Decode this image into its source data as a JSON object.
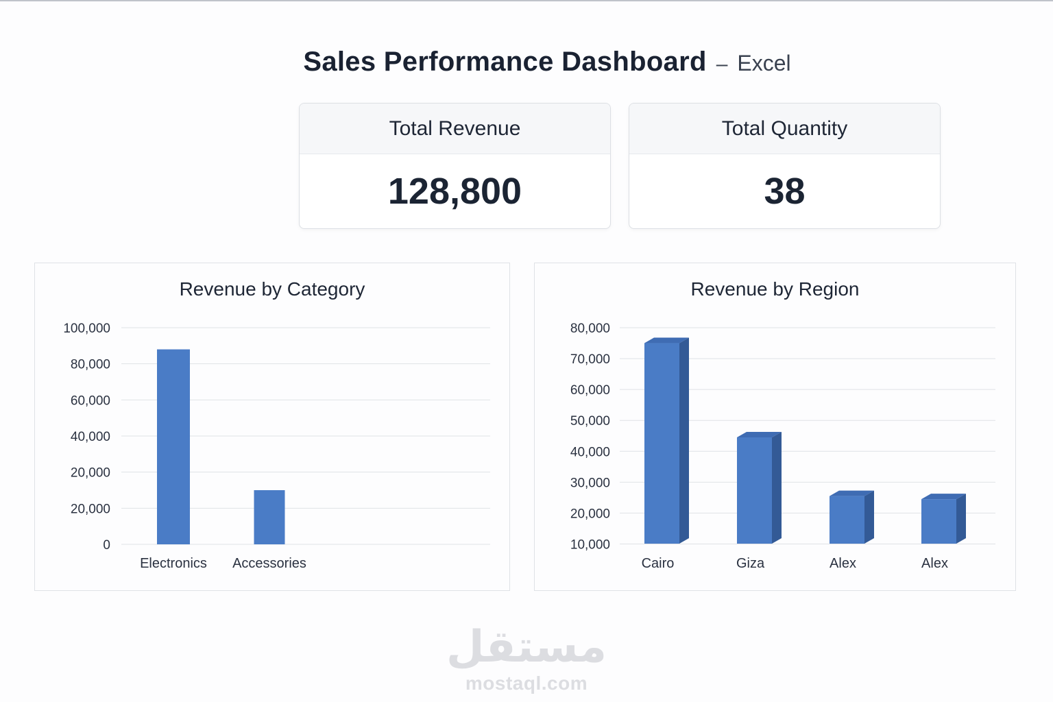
{
  "header": {
    "title": "Sales Performance Dashboard",
    "dash": "–",
    "subtitle": "Excel"
  },
  "kpis": {
    "revenue": {
      "label": "Total Revenue",
      "value": "128,800"
    },
    "quantity": {
      "label": "Total Quantity",
      "value": "38"
    }
  },
  "colors": {
    "bar_front": "#4a7cc6",
    "bar_side": "#335a96",
    "bar_top": "#3f6cb3",
    "grid": "#dfe2e6"
  },
  "chart_data": [
    {
      "type": "bar",
      "title": "Revenue by Category",
      "categories": [
        "Electronics",
        "Accessories"
      ],
      "values": [
        90000,
        25000
      ],
      "y_tick_labels": [
        "0",
        "20,000",
        "20,000",
        "40,000",
        "60,000",
        "80,000",
        "100,000"
      ],
      "ylim": [
        0,
        100000
      ],
      "grid": true,
      "xlabel": "",
      "ylabel": ""
    },
    {
      "type": "bar",
      "title": "Revenue by Region",
      "categories": [
        "Cairo",
        "Giza",
        "Alex",
        "Alex"
      ],
      "values": [
        75000,
        44500,
        25500,
        24500
      ],
      "y_tick_labels": [
        "10,000",
        "20,000",
        "30,000",
        "40,000",
        "50,000",
        "60,000",
        "70,000",
        "80,000"
      ],
      "ylim": [
        5000,
        80000
      ],
      "style": "3d",
      "grid": true,
      "xlabel": "",
      "ylabel": ""
    }
  ],
  "watermark": {
    "arabic": "مستقل",
    "latin": "mostaql.com"
  }
}
